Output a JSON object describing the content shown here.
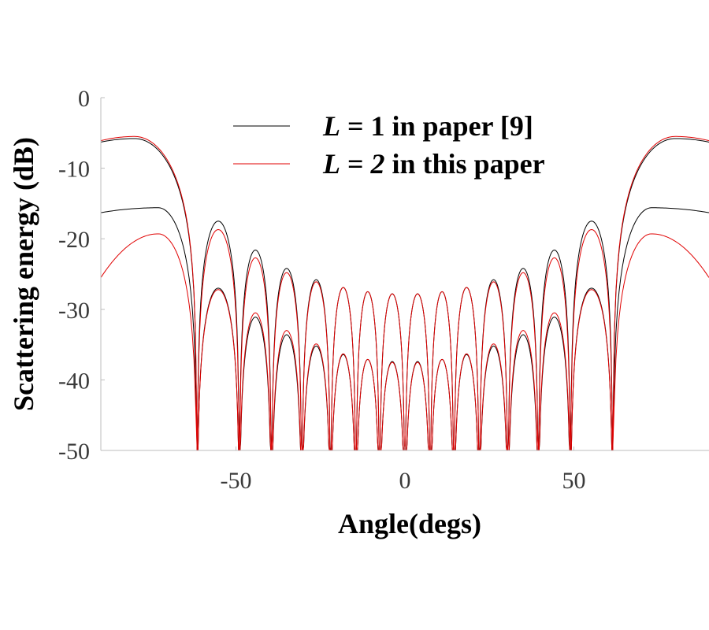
{
  "chart_data": {
    "type": "line",
    "xlabel": "Angle(degs)",
    "ylabel": "Scattering energy (dB)",
    "xlim": [
      -90,
      90
    ],
    "ylim": [
      -50,
      0
    ],
    "xticks": [
      -50,
      0,
      50
    ],
    "xtick_labels": [
      "-50",
      "0",
      "50"
    ],
    "yticks": [
      0,
      -10,
      -20,
      -30,
      -40,
      -50
    ],
    "ytick_labels": [
      "0",
      "-10",
      "-20",
      "-30",
      "-40",
      "-50"
    ],
    "legend": [
      {
        "italic": "L",
        "text": " = 1 in paper [9]",
        "color": "#000000"
      },
      {
        "italic": "L",
        "text": " = ",
        "italic2": "2",
        "text2": " in this paper",
        "color": "#e00000"
      }
    ],
    "legend_position": "top-center",
    "grid": false,
    "nulls": [
      -61.5,
      -49.0,
      -39.5,
      -30.5,
      -22.0,
      -14.5,
      -7.5,
      0.0,
      7.5,
      14.5,
      22.0,
      30.5,
      39.5,
      49.0,
      61.5
    ],
    "series": [
      {
        "color": "#000000",
        "outer_x": [
          -90,
          -80,
          -61.5,
          61.5,
          80,
          90
        ],
        "outer_y": [
          -6.3,
          -5.8,
          -50,
          -50,
          -5.8,
          -6.3
        ],
        "outer2_x": [
          -90,
          -73,
          -61.5,
          61.5,
          73,
          90
        ],
        "outer2_y": [
          -16.3,
          -15.6,
          -50,
          -50,
          -15.6,
          -16.3
        ],
        "upper_lobe_peaks": [
          -17.5,
          -21.6,
          -24.2,
          -25.8,
          -26.9,
          -27.5,
          -27.8,
          -27.8,
          -27.5,
          -26.9,
          -25.8,
          -24.2,
          -21.6,
          -17.5
        ],
        "lower_lobe_peaks": [
          -27.0,
          -31.1,
          -33.6,
          -35.2,
          -36.4,
          -37.1,
          -37.4,
          -37.4,
          -37.1,
          -36.4,
          -35.2,
          -33.6,
          -31.1,
          -27.0
        ]
      },
      {
        "color": "#e00000",
        "outer_x": [
          -90,
          -80,
          -61.5,
          61.5,
          80,
          90
        ],
        "outer_y": [
          -6.1,
          -5.5,
          -50,
          -50,
          -5.5,
          -6.1
        ],
        "outer2_x": [
          -90,
          -73,
          -61.5,
          61.5,
          73,
          90
        ],
        "outer2_y": [
          -25.5,
          -19.3,
          -50,
          -50,
          -19.3,
          -25.5
        ],
        "upper_lobe_peaks": [
          -18.7,
          -22.7,
          -24.8,
          -26.1,
          -26.9,
          -27.5,
          -27.8,
          -27.8,
          -27.5,
          -26.9,
          -26.1,
          -24.8,
          -22.7,
          -18.7
        ],
        "lower_lobe_peaks": [
          -27.2,
          -30.5,
          -33.0,
          -34.9,
          -36.3,
          -37.1,
          -37.5,
          -37.5,
          -37.1,
          -36.3,
          -34.9,
          -33.0,
          -30.5,
          -27.2
        ]
      }
    ]
  }
}
